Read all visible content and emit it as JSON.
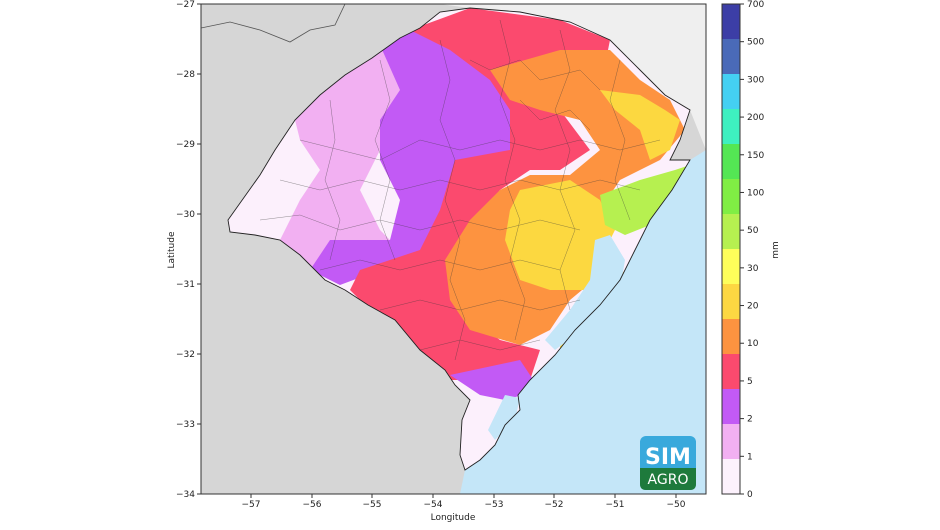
{
  "map": {
    "xlabel": "Longitude",
    "ylabel": "Latitude",
    "x_ticks": [
      "−57",
      "−56",
      "−55",
      "−54",
      "−53",
      "−52",
      "−51",
      "−50"
    ],
    "y_ticks": [
      "−27",
      "−28",
      "−29",
      "−30",
      "−31",
      "−32",
      "−33",
      "−34"
    ],
    "extent": {
      "lon": [
        -57.8,
        -49.5
      ],
      "lat": [
        -34,
        -27
      ]
    },
    "colors": {
      "land_outside": "#d6d6d6",
      "ocean": "#c4e6f8",
      "neighbor_state": "#efefef",
      "boundary": "#3a3a3a"
    },
    "regions": [
      {
        "name": "west",
        "bin": "0-1",
        "color": "#fcf0fc"
      },
      {
        "name": "northwest",
        "bin": "1-2",
        "color": "#f2b0f2"
      },
      {
        "name": "central-west",
        "bin": "2-5",
        "color": "#c25af5"
      },
      {
        "name": "central",
        "bin": "5-10",
        "color": "#fb4a6e"
      },
      {
        "name": "east-central",
        "bin": "10-20",
        "color": "#fd9340"
      },
      {
        "name": "northeast",
        "bin": "20-30",
        "color": "#fcd840"
      },
      {
        "name": "coast",
        "bin": "50-100",
        "color": "#b6f050"
      }
    ]
  },
  "colorbar": {
    "unit": "mm",
    "labels": [
      "0",
      "1",
      "2",
      "5",
      "10",
      "20",
      "30",
      "50",
      "100",
      "150",
      "200",
      "300",
      "500",
      "700"
    ],
    "colors": [
      "#fdf2fd",
      "#f2b0f2",
      "#c25af5",
      "#fb4a6e",
      "#fd9340",
      "#fdd742",
      "#fefe5a",
      "#b6f050",
      "#80ee44",
      "#54e654",
      "#3ef0c0",
      "#44d0f2",
      "#4a6ab8",
      "#3c3ea6"
    ]
  },
  "logo": {
    "line1": "SIM",
    "line2": "AGRO",
    "bg_top": "#39a9dc",
    "bg_bottom": "#1e7a3c"
  }
}
